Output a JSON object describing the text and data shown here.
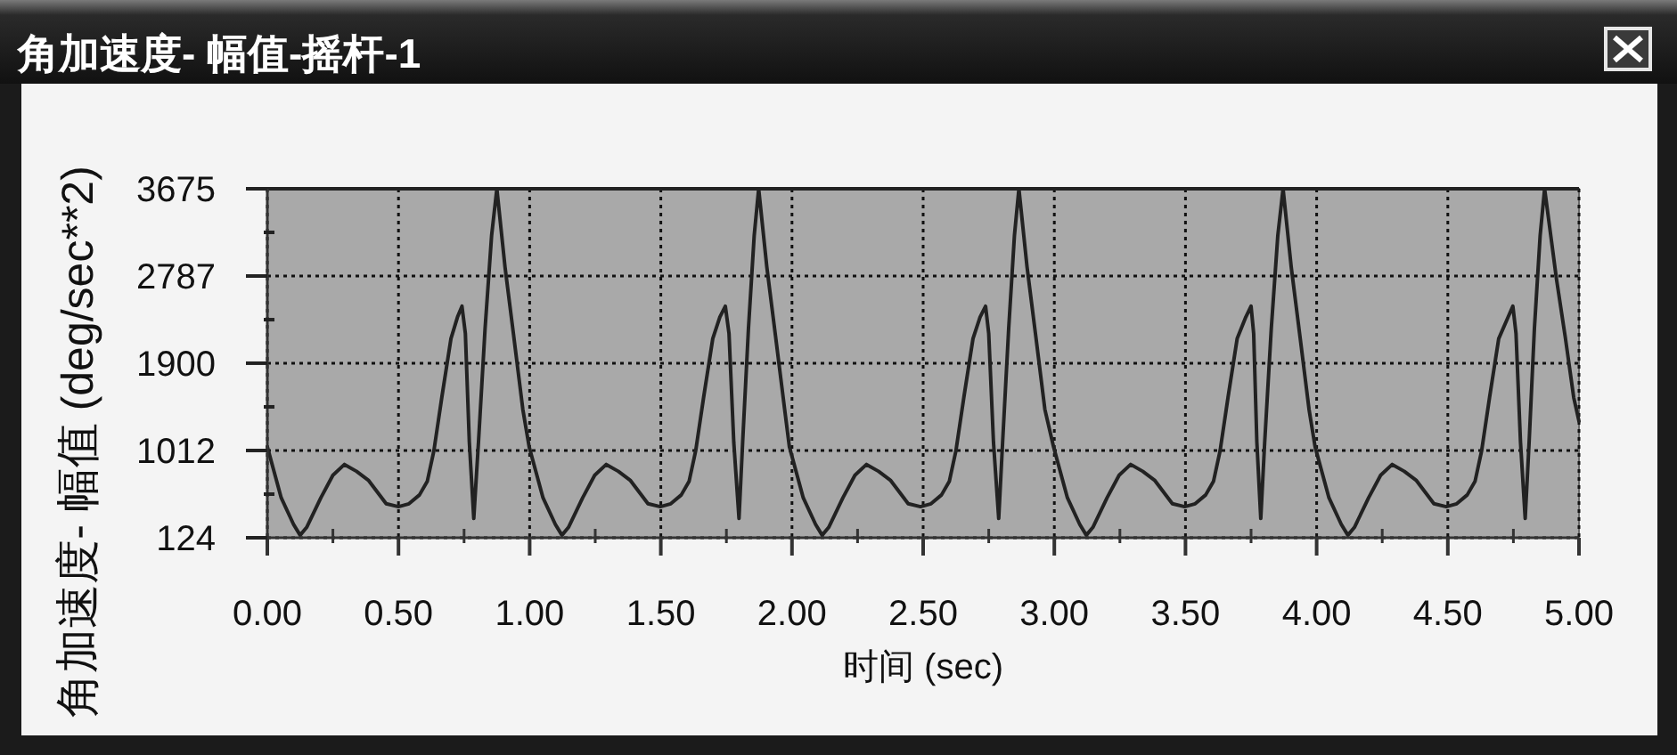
{
  "chart_data": {
    "type": "line",
    "title": "角加速度- 幅值-摇杆-1",
    "xlabel": "时间 (sec)",
    "ylabel": "角加速度- 幅值 (deg/sec**2)",
    "x": [
      0,
      0.053,
      0.1,
      0.125,
      0.15,
      0.204,
      0.25,
      0.294,
      0.34,
      0.385,
      0.453,
      0.5,
      0.54,
      0.58,
      0.61,
      0.635,
      0.665,
      0.7,
      0.725,
      0.742,
      0.755,
      0.77,
      0.787,
      0.805,
      0.83,
      0.855,
      0.875,
      0.906,
      0.94,
      0.974,
      0.998,
      1.051,
      1.098,
      1.123,
      1.148,
      1.202,
      1.248,
      1.292,
      1.338,
      1.383,
      1.451,
      1.498,
      1.538,
      1.578,
      1.608,
      1.633,
      1.663,
      1.698,
      1.725,
      1.746,
      1.76,
      1.778,
      1.798,
      1.812,
      1.834,
      1.856,
      1.873,
      1.904,
      1.938,
      1.972,
      1.99,
      2.043,
      2.09,
      2.115,
      2.14,
      2.194,
      2.24,
      2.284,
      2.33,
      2.375,
      2.443,
      2.49,
      2.53,
      2.57,
      2.6,
      2.625,
      2.655,
      2.69,
      2.717,
      2.738,
      2.75,
      2.768,
      2.788,
      2.803,
      2.826,
      2.848,
      2.865,
      2.896,
      2.93,
      2.964,
      2.997,
      3.05,
      3.097,
      3.122,
      3.147,
      3.201,
      3.247,
      3.291,
      3.337,
      3.382,
      3.45,
      3.497,
      3.537,
      3.577,
      3.607,
      3.632,
      3.662,
      3.697,
      3.73,
      3.75,
      3.76,
      3.772,
      3.787,
      3.802,
      3.827,
      3.852,
      3.872,
      3.903,
      3.937,
      3.971,
      3.994,
      4.047,
      4.094,
      4.119,
      4.144,
      4.198,
      4.244,
      4.288,
      4.334,
      4.379,
      4.447,
      4.494,
      4.534,
      4.574,
      4.604,
      4.629,
      4.659,
      4.694,
      4.73,
      4.748,
      4.76,
      4.777,
      4.795,
      4.81,
      4.83,
      4.852,
      4.869,
      4.914,
      4.948,
      4.98,
      5
    ],
    "series": [
      {
        "color": "#222222",
        "values": [
          1050,
          530,
          260,
          150,
          230,
          530,
          760,
          870,
          800,
          710,
          470,
          440,
          470,
          560,
          700,
          1010,
          1550,
          2150,
          2370,
          2480,
          2200,
          1100,
          320,
          1100,
          2250,
          3200,
          3675,
          2880,
          2160,
          1430,
          1050,
          530,
          260,
          150,
          230,
          530,
          760,
          870,
          800,
          710,
          470,
          440,
          470,
          560,
          700,
          1010,
          1550,
          2150,
          2370,
          2480,
          2200,
          1100,
          320,
          1100,
          2250,
          3200,
          3675,
          2880,
          2160,
          1430,
          1050,
          530,
          260,
          150,
          230,
          530,
          760,
          870,
          800,
          710,
          470,
          440,
          470,
          560,
          700,
          1010,
          1550,
          2150,
          2370,
          2480,
          2200,
          1100,
          320,
          1100,
          2250,
          3200,
          3675,
          2880,
          2160,
          1430,
          1050,
          530,
          260,
          150,
          230,
          530,
          760,
          870,
          800,
          710,
          470,
          440,
          470,
          560,
          700,
          1010,
          1550,
          2150,
          2370,
          2480,
          2200,
          1100,
          320,
          1100,
          2250,
          3200,
          3675,
          2880,
          2160,
          1430,
          1050,
          530,
          260,
          150,
          230,
          530,
          760,
          870,
          800,
          710,
          470,
          440,
          470,
          560,
          700,
          1010,
          1550,
          2150,
          2370,
          2480,
          2200,
          1100,
          320,
          1100,
          2250,
          3200,
          3675,
          2760,
          2160,
          1550,
          1310
        ]
      }
    ],
    "xlim": [
      0,
      5
    ],
    "ylim": [
      124,
      3675
    ],
    "xticks": [
      {
        "value": 0,
        "label": "0.00"
      },
      {
        "value": 0.25,
        "label": null
      },
      {
        "value": 0.5,
        "label": "0.50"
      },
      {
        "value": 0.75,
        "label": null
      },
      {
        "value": 1,
        "label": "1.00"
      },
      {
        "value": 1.25,
        "label": null
      },
      {
        "value": 1.5,
        "label": "1.50"
      },
      {
        "value": 1.75,
        "label": null
      },
      {
        "value": 2,
        "label": "2.00"
      },
      {
        "value": 2.25,
        "label": null
      },
      {
        "value": 2.5,
        "label": "2.50"
      },
      {
        "value": 2.75,
        "label": null
      },
      {
        "value": 3,
        "label": "3.00"
      },
      {
        "value": 3.25,
        "label": null
      },
      {
        "value": 3.5,
        "label": "3.50"
      },
      {
        "value": 3.75,
        "label": null
      },
      {
        "value": 4,
        "label": "4.00"
      },
      {
        "value": 4.25,
        "label": null
      },
      {
        "value": 4.5,
        "label": "4.50"
      },
      {
        "value": 4.75,
        "label": null
      },
      {
        "value": 5,
        "label": "5.00"
      }
    ],
    "yticks": [
      124,
      {
        "value": 568,
        "label": null
      },
      1012,
      {
        "value": 1456,
        "label": null
      },
      1900,
      {
        "value": 2343,
        "label": null
      },
      2787,
      {
        "value": 3231,
        "label": null
      },
      3675
    ],
    "grid": true,
    "line_style": "solid"
  }
}
